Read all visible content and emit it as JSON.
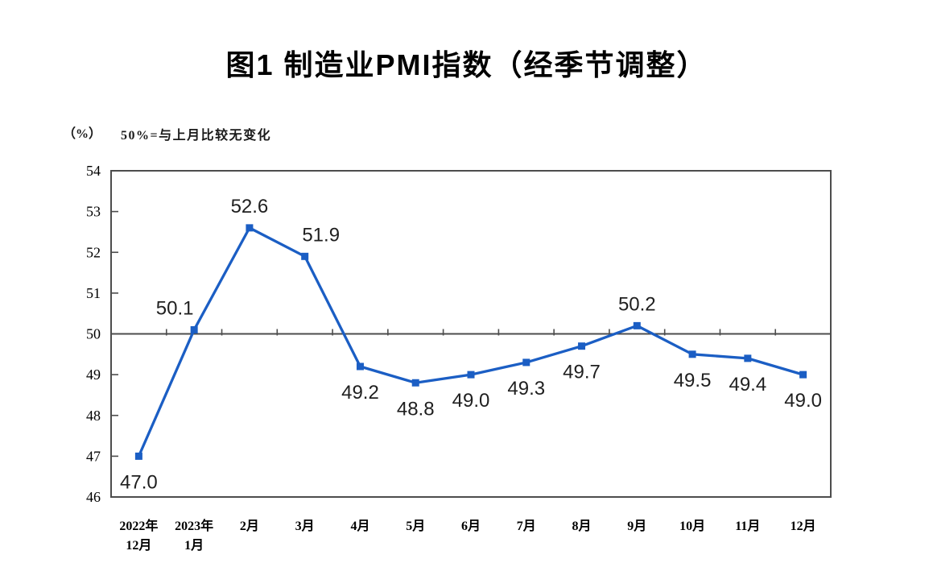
{
  "page": {
    "title": "图1 制造业PMI指数（经季节调整）",
    "unit_label": "（%）",
    "note": "50%=与上月比较无变化"
  },
  "colors": {
    "line": "#1B5EC4",
    "axis": "#4D4D4D",
    "label_text": "#1F1F1F",
    "background": "#FFFFFF"
  },
  "chart_data": {
    "type": "line",
    "title": "图1 制造业PMI指数（经季节调整）",
    "unit": "（%）",
    "note": "50%=与上月比较无变化",
    "categories": [
      "2022年12月",
      "2023年1月",
      "2月",
      "3月",
      "4月",
      "5月",
      "6月",
      "7月",
      "8月",
      "9月",
      "10月",
      "11月",
      "12月"
    ],
    "x_tick_lines": [
      [
        "2022年",
        "12月"
      ],
      [
        "2023年",
        "1月"
      ],
      [
        "2月"
      ],
      [
        "3月"
      ],
      [
        "4月"
      ],
      [
        "5月"
      ],
      [
        "6月"
      ],
      [
        "7月"
      ],
      [
        "8月"
      ],
      [
        "9月"
      ],
      [
        "10月"
      ],
      [
        "11月"
      ],
      [
        "12月"
      ]
    ],
    "values": [
      47.0,
      50.1,
      52.6,
      51.9,
      49.2,
      48.8,
      49.0,
      49.3,
      49.7,
      50.2,
      49.5,
      49.4,
      49.0
    ],
    "value_labels": [
      "47.0",
      "50.1",
      "52.6",
      "51.9",
      "49.2",
      "48.8",
      "49.0",
      "49.3",
      "49.7",
      "50.2",
      "49.5",
      "49.4",
      "49.0"
    ],
    "label_placement": [
      "below",
      "above-left",
      "above",
      "above-right",
      "below",
      "below",
      "below",
      "below",
      "below",
      "above",
      "below",
      "below",
      "below"
    ],
    "ylim": [
      46,
      54
    ],
    "yticks": [
      46,
      47,
      48,
      49,
      50,
      51,
      52,
      53,
      54
    ],
    "reference_line": 50,
    "grid": false,
    "legend": false,
    "marker": "square"
  }
}
